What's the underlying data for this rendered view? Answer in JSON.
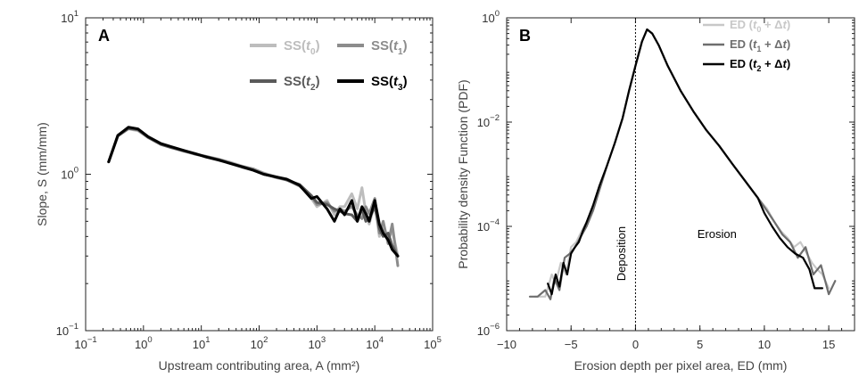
{
  "chart_data": [
    {
      "type": "line",
      "panel_label": "A",
      "xlabel": "Upstream contributing area, A (mm²)",
      "ylabel": "Slope, S (mm/mm)",
      "x_scale": "log",
      "y_scale": "log",
      "xlim": [
        0.1,
        100000
      ],
      "ylim": [
        0.1,
        10
      ],
      "x_ticks": [
        {
          "base": "10",
          "exp": "−1",
          "value": 0.1
        },
        {
          "base": "10",
          "exp": "0",
          "value": 1
        },
        {
          "base": "10",
          "exp": "1",
          "value": 10
        },
        {
          "base": "10",
          "exp": "2",
          "value": 100
        },
        {
          "base": "10",
          "exp": "3",
          "value": 1000
        },
        {
          "base": "10",
          "exp": "4",
          "value": 10000
        },
        {
          "base": "10",
          "exp": "5",
          "value": 100000
        }
      ],
      "y_ticks": [
        {
          "base": "10",
          "exp": "−1",
          "value": 0.1
        },
        {
          "base": "10",
          "exp": "0",
          "value": 1
        },
        {
          "base": "10",
          "exp": "1",
          "value": 10
        }
      ],
      "legend": [
        {
          "pre": "SS(",
          "var": "t",
          "sub": "0",
          "post": ")",
          "color": "#bdbdbd"
        },
        {
          "pre": "SS(",
          "var": "t",
          "sub": "1",
          "post": ")",
          "color": "#8c8c8c"
        },
        {
          "pre": "SS(",
          "var": "t",
          "sub": "2",
          "post": ")",
          "color": "#5a5a5a"
        },
        {
          "pre": "SS(",
          "var": "t",
          "sub": "3",
          "post": ")",
          "color": "#000000"
        }
      ],
      "series": [
        {
          "name": "SS(t0)",
          "color": "#bdbdbd",
          "x": [
            0.25,
            0.36,
            0.55,
            0.8,
            1.2,
            2,
            3,
            5,
            8,
            12,
            20,
            30,
            50,
            80,
            120,
            200,
            300,
            500,
            800,
            1000,
            1500,
            2000,
            2500,
            3000,
            4000,
            5000,
            6000,
            7000,
            8000,
            10000,
            12000,
            14000,
            17000,
            20000,
            25000
          ],
          "y": [
            1.2,
            1.75,
            1.95,
            1.9,
            1.72,
            1.55,
            1.48,
            1.4,
            1.35,
            1.3,
            1.25,
            1.2,
            1.13,
            1.08,
            1.02,
            0.96,
            0.93,
            0.85,
            0.7,
            0.62,
            0.68,
            0.55,
            0.62,
            0.62,
            0.75,
            0.6,
            0.82,
            0.57,
            0.48,
            0.65,
            0.4,
            0.45,
            0.38,
            0.44,
            0.3
          ]
        },
        {
          "name": "SS(t1)",
          "color": "#8c8c8c",
          "x": [
            0.25,
            0.36,
            0.55,
            0.8,
            1.2,
            2,
            3,
            5,
            8,
            12,
            20,
            30,
            50,
            80,
            120,
            200,
            300,
            500,
            800,
            1000,
            1500,
            2000,
            2500,
            3000,
            4000,
            5000,
            6000,
            7000,
            8000,
            10000,
            12000,
            14000,
            17000,
            20000,
            25000
          ],
          "y": [
            1.2,
            1.78,
            1.98,
            1.92,
            1.73,
            1.56,
            1.49,
            1.41,
            1.35,
            1.29,
            1.24,
            1.19,
            1.12,
            1.08,
            1.01,
            0.95,
            0.92,
            0.84,
            0.72,
            0.64,
            0.66,
            0.58,
            0.6,
            0.58,
            0.62,
            0.55,
            0.52,
            0.62,
            0.56,
            0.7,
            0.42,
            0.5,
            0.36,
            0.48,
            0.26
          ]
        },
        {
          "name": "SS(t2)",
          "color": "#5a5a5a",
          "x": [
            0.25,
            0.36,
            0.55,
            0.8,
            1.2,
            2,
            3,
            5,
            8,
            12,
            20,
            30,
            50,
            80,
            120,
            200,
            300,
            500,
            800,
            1000,
            1500,
            2000,
            2500,
            3000,
            4000,
            5000,
            6000,
            7000,
            8000,
            10000,
            12000,
            14000,
            17000,
            20000,
            25000
          ],
          "y": [
            1.2,
            1.76,
            1.96,
            1.93,
            1.72,
            1.55,
            1.48,
            1.41,
            1.34,
            1.3,
            1.24,
            1.18,
            1.11,
            1.06,
            1.0,
            0.96,
            0.92,
            0.86,
            0.73,
            0.66,
            0.64,
            0.6,
            0.58,
            0.56,
            0.55,
            0.5,
            0.6,
            0.5,
            0.52,
            0.62,
            0.45,
            0.4,
            0.42,
            0.35,
            0.3
          ]
        },
        {
          "name": "SS(t3)",
          "color": "#000000",
          "x": [
            0.25,
            0.36,
            0.55,
            0.8,
            1.2,
            2,
            3,
            5,
            8,
            12,
            20,
            30,
            50,
            80,
            120,
            200,
            300,
            500,
            800,
            1000,
            1500,
            2000,
            2500,
            3000,
            4000,
            5000,
            6000,
            7000,
            8000,
            10000,
            12000,
            14000,
            17000,
            20000,
            25000
          ],
          "y": [
            1.2,
            1.77,
            2.0,
            1.95,
            1.74,
            1.57,
            1.5,
            1.42,
            1.35,
            1.29,
            1.23,
            1.18,
            1.12,
            1.06,
            1.0,
            0.96,
            0.93,
            0.85,
            0.7,
            0.72,
            0.6,
            0.5,
            0.6,
            0.55,
            0.68,
            0.5,
            0.62,
            0.56,
            0.5,
            0.68,
            0.48,
            0.42,
            0.38,
            0.33,
            0.3
          ]
        }
      ]
    },
    {
      "type": "line",
      "panel_label": "B",
      "xlabel": "Erosion depth per pixel area, ED (mm)",
      "ylabel": "Probability density Function (PDF)",
      "x_scale": "linear",
      "y_scale": "log",
      "xlim": [
        -10,
        17
      ],
      "ylim": [
        1e-06,
        1
      ],
      "x_ticks": [
        {
          "label": "−10",
          "value": -10
        },
        {
          "label": "−5",
          "value": -5
        },
        {
          "label": "0",
          "value": 0
        },
        {
          "label": "5",
          "value": 5
        },
        {
          "label": "10",
          "value": 10
        },
        {
          "label": "15",
          "value": 15
        }
      ],
      "y_ticks": [
        {
          "base": "10",
          "exp": "−6",
          "value": 1e-06
        },
        {
          "base": "10",
          "exp": "−4",
          "value": 0.0001
        },
        {
          "base": "10",
          "exp": "−2",
          "value": 0.01
        },
        {
          "base": "10",
          "exp": "0",
          "value": 1
        }
      ],
      "annotations": [
        {
          "text": "Deposition",
          "x": -0.8,
          "y": 3e-05,
          "rotate": true
        },
        {
          "text": "Erosion",
          "x": 4.8,
          "y": 6e-05,
          "rotate": false
        }
      ],
      "vline_x": 0,
      "legend": [
        {
          "pre": "ED (",
          "var": "t",
          "sub": "0",
          "post": " + Δ",
          "var2": "t",
          "end": ")",
          "color": "#c8c8c8"
        },
        {
          "pre": "ED (",
          "var": "t",
          "sub": "1",
          "post": " + Δ",
          "var2": "t",
          "end": ")",
          "color": "#6e6e6e"
        },
        {
          "pre": "ED (",
          "var": "t",
          "sub": "2",
          "post": " + Δ",
          "var2": "t",
          "end": ")",
          "color": "#000000"
        }
      ],
      "series": [
        {
          "name": "ED (t0 + Δt)",
          "color": "#c8c8c8",
          "x": [
            -7.8,
            -7.0,
            -6.5,
            -6.2,
            -5.8,
            -5.4,
            -5.0,
            -4.6,
            -4.2,
            -3.8,
            -3.3,
            -2.8,
            -2.2,
            -1.6,
            -1.0,
            -0.5,
            0.0,
            0.5,
            0.9,
            1.3,
            1.8,
            2.5,
            3.5,
            4.5,
            5.5,
            6.5,
            7.5,
            8.5,
            9.5,
            10.2,
            10.8,
            11.3,
            11.8,
            12.3,
            12.8,
            13.3,
            13.7,
            14.1,
            14.5,
            15.0
          ],
          "y": [
            4.5e-06,
            4.5e-06,
            1.2e-05,
            8e-06,
            2e-05,
            1.2e-05,
            4e-05,
            5e-05,
            8e-05,
            0.00012,
            0.0002,
            0.0005,
            0.0015,
            0.004,
            0.012,
            0.04,
            0.12,
            0.35,
            0.6,
            0.5,
            0.3,
            0.12,
            0.04,
            0.016,
            0.007,
            0.0035,
            0.0016,
            0.00075,
            0.00035,
            0.00022,
            0.00012,
            8e-05,
            6e-05,
            4e-05,
            5e-05,
            3e-05,
            2e-05,
            1.5e-05,
            1.2e-05,
            6.5e-06
          ]
        },
        {
          "name": "ED (t1 + Δt)",
          "color": "#6e6e6e",
          "x": [
            -8.2,
            -7.6,
            -7.0,
            -6.6,
            -6.3,
            -5.9,
            -5.5,
            -5.1,
            -4.7,
            -4.3,
            -3.8,
            -3.3,
            -2.8,
            -2.2,
            -1.6,
            -1.0,
            -0.5,
            0.0,
            0.5,
            0.9,
            1.3,
            1.8,
            2.5,
            3.5,
            4.5,
            5.5,
            6.5,
            7.5,
            8.5,
            9.5,
            10.2,
            10.8,
            11.4,
            12.0,
            12.6,
            13.2,
            13.8,
            14.4,
            15.0,
            15.5
          ],
          "y": [
            4.5e-06,
            4.5e-06,
            6e-06,
            4e-06,
            1e-05,
            6e-06,
            2.5e-05,
            3e-05,
            4e-05,
            6e-05,
            0.0001,
            0.0002,
            0.0005,
            0.0015,
            0.004,
            0.012,
            0.04,
            0.12,
            0.35,
            0.6,
            0.5,
            0.3,
            0.12,
            0.04,
            0.016,
            0.007,
            0.0035,
            0.0016,
            0.00075,
            0.00035,
            0.0002,
            0.00012,
            7e-05,
            5e-05,
            2.5e-05,
            4e-05,
            1.2e-05,
            1.8e-05,
            5e-06,
            9e-06
          ]
        },
        {
          "name": "ED (t2 + Δt)",
          "color": "#000000",
          "x": [
            -6.8,
            -6.5,
            -6.2,
            -5.9,
            -5.6,
            -5.3,
            -5.0,
            -4.7,
            -4.4,
            -4.1,
            -3.8,
            -3.3,
            -2.8,
            -2.2,
            -1.6,
            -1.0,
            -0.5,
            0.0,
            0.5,
            0.9,
            1.3,
            1.8,
            2.5,
            3.5,
            4.5,
            5.5,
            6.5,
            7.5,
            8.5,
            9.5,
            10.0,
            10.6,
            11.2,
            11.8,
            12.4,
            13.0,
            13.5,
            13.9,
            14.5
          ],
          "y": [
            8e-06,
            5e-06,
            1.2e-05,
            7e-06,
            2e-05,
            1.2e-05,
            3e-05,
            4e-05,
            5e-05,
            8e-05,
            0.00012,
            0.00025,
            0.0006,
            0.0015,
            0.004,
            0.012,
            0.04,
            0.12,
            0.35,
            0.6,
            0.5,
            0.3,
            0.12,
            0.04,
            0.016,
            0.007,
            0.0035,
            0.0016,
            0.00075,
            0.00035,
            0.00018,
            0.0001,
            6e-05,
            4e-05,
            3e-05,
            2.5e-05,
            1.5e-05,
            6.5e-06,
            6.5e-06
          ]
        }
      ]
    }
  ]
}
